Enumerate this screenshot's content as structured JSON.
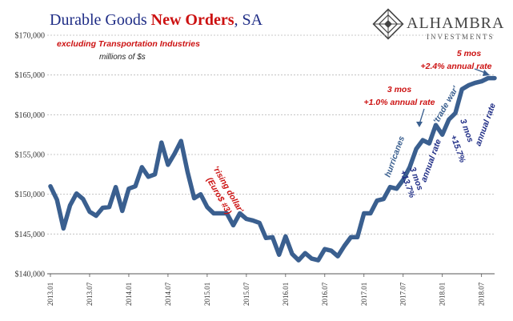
{
  "chart_data": {
    "type": "line",
    "title": "Durable Goods New Orders, SA",
    "title_parts": [
      "Durable Goods ",
      "New Orders",
      ", SA"
    ],
    "subtitle": "excluding Transportation  Industries",
    "units": "millions of $s",
    "logo": {
      "name": "ALHAMBRA",
      "sub": "INVESTMENTS"
    },
    "xlabel": "",
    "ylabel": "",
    "ylim": [
      140000,
      170000
    ],
    "y_ticks": [
      140000,
      145000,
      150000,
      155000,
      160000,
      165000,
      170000
    ],
    "y_tick_labels": [
      "$140,000",
      "$145,000",
      "$150,000",
      "$155,000",
      "$160,000",
      "$165,000",
      "$170,000"
    ],
    "x_tick_labels": [
      "2013.01",
      "2013.07",
      "2014.01",
      "2014.07",
      "2015.01",
      "2015.07",
      "2016.01",
      "2016.07",
      "2017.01",
      "2017.07",
      "2018.01",
      "2018.07"
    ],
    "grid": true,
    "line_color": "#3a5f8f",
    "series": [
      {
        "x": [
          "2013.01",
          "2013.02",
          "2013.03",
          "2013.04",
          "2013.05",
          "2013.06",
          "2013.07",
          "2013.08",
          "2013.09",
          "2013.10",
          "2013.11",
          "2013.12",
          "2014.01",
          "2014.02",
          "2014.03",
          "2014.04",
          "2014.05",
          "2014.06",
          "2014.07",
          "2014.08",
          "2014.09",
          "2014.10",
          "2014.11",
          "2014.12",
          "2015.01",
          "2015.02",
          "2015.03",
          "2015.04",
          "2015.05",
          "2015.06",
          "2015.07",
          "2015.08",
          "2015.09",
          "2015.10",
          "2015.11",
          "2015.12",
          "2016.01",
          "2016.02",
          "2016.03",
          "2016.04",
          "2016.05",
          "2016.06",
          "2016.07",
          "2016.08",
          "2016.09",
          "2016.10",
          "2016.11",
          "2016.12",
          "2017.01",
          "2017.02",
          "2017.03",
          "2017.04",
          "2017.05",
          "2017.06",
          "2017.07",
          "2017.08",
          "2017.09",
          "2017.10",
          "2017.11",
          "2017.12",
          "2018.01",
          "2018.02",
          "2018.03",
          "2018.04",
          "2018.05",
          "2018.06",
          "2018.07",
          "2018.08",
          "2018.09"
        ],
        "values": [
          151000,
          149300,
          145700,
          148600,
          150100,
          149400,
          147800,
          147300,
          148300,
          148400,
          150900,
          147900,
          150700,
          151000,
          153400,
          152200,
          152500,
          156500,
          153700,
          155100,
          156700,
          152800,
          149500,
          150000,
          148400,
          147600,
          147600,
          147600,
          146100,
          147600,
          146900,
          146700,
          146400,
          144500,
          144600,
          142400,
          144700,
          142500,
          141700,
          142600,
          141900,
          141700,
          143100,
          142900,
          142200,
          143500,
          144600,
          144600,
          147600,
          147600,
          149200,
          149400,
          150900,
          150700,
          151800,
          153400,
          155700,
          156800,
          156400,
          158700,
          157500,
          159400,
          160200,
          163200,
          163700,
          164000,
          164200,
          164600,
          164600
        ]
      }
    ],
    "annotations": [
      {
        "text": "'rising dollar'",
        "color": "#cc1111"
      },
      {
        "text": "(Euro$ #3)",
        "color": "#cc1111"
      },
      {
        "text": "hurricanes",
        "color": "#3a5f8f"
      },
      {
        "text": "'trade war'",
        "color": "#3a5f8f"
      },
      {
        "text": "3 mos",
        "color": "#1f2d86"
      },
      {
        "text": "+13.7%",
        "color": "#1f2d86"
      },
      {
        "text": "annual rate",
        "color": "#1f2d86"
      },
      {
        "text": "3 mos",
        "color": "#1f2d86"
      },
      {
        "text": "+15.7%",
        "color": "#1f2d86"
      },
      {
        "text": "annual rate",
        "color": "#1f2d86"
      },
      {
        "text": "3 mos",
        "color": "#cc1111"
      },
      {
        "text": "+1.0% annual rate",
        "color": "#cc1111"
      },
      {
        "text": "5 mos",
        "color": "#cc1111"
      },
      {
        "text": "+2.4% annual rate",
        "color": "#cc1111"
      }
    ]
  }
}
